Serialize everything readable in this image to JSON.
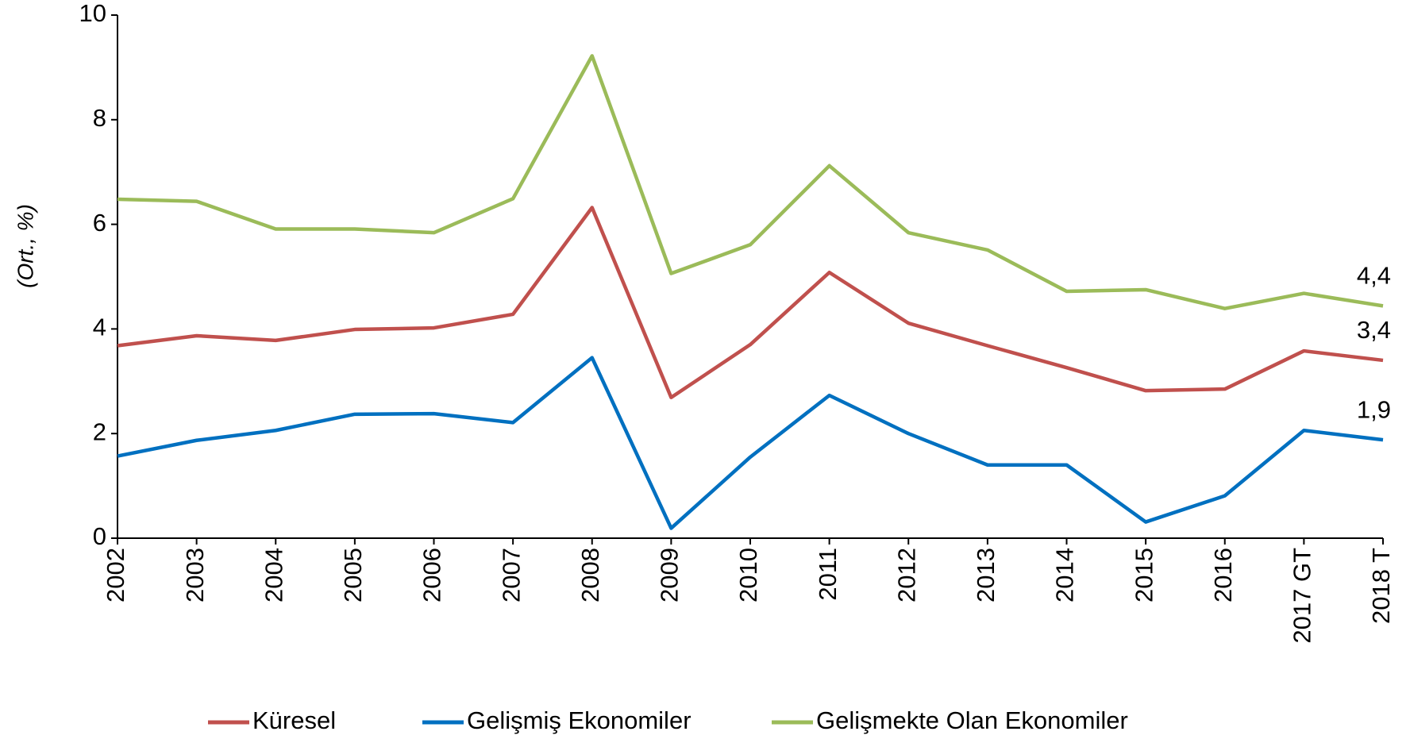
{
  "chart_data": {
    "type": "line",
    "y_label": "(Ort., %)",
    "categories": [
      "2002",
      "2003",
      "2004",
      "2005",
      "2006",
      "2007",
      "2008",
      "2009",
      "2010",
      "2011",
      "2012",
      "2013",
      "2014",
      "2015",
      "2016",
      "2017 GT",
      "2018 T"
    ],
    "series": [
      {
        "name": "Küresel",
        "color": "#c0504d",
        "values": [
          3.68,
          3.87,
          3.78,
          3.99,
          4.02,
          4.28,
          6.32,
          2.69,
          3.7,
          5.08,
          4.11,
          3.68,
          3.26,
          2.82,
          2.85,
          3.58,
          3.4
        ],
        "value_labels": [
          null,
          null,
          null,
          null,
          null,
          null,
          null,
          null,
          null,
          null,
          null,
          null,
          null,
          null,
          null,
          null,
          "3,4"
        ]
      },
      {
        "name": "Gelişmiş Ekonomiler",
        "color": "#0070c0",
        "values": [
          1.57,
          1.87,
          2.06,
          2.37,
          2.38,
          2.21,
          3.45,
          0.19,
          1.55,
          2.73,
          2.0,
          1.4,
          1.4,
          0.31,
          0.81,
          2.06,
          1.88
        ],
        "value_labels": [
          null,
          null,
          null,
          null,
          null,
          null,
          null,
          null,
          null,
          null,
          null,
          null,
          null,
          null,
          null,
          null,
          "1,9"
        ]
      },
      {
        "name": "Gelişmekte Olan Ekonomiler",
        "color": "#9bbb59",
        "values": [
          6.48,
          6.44,
          5.91,
          5.91,
          5.84,
          6.49,
          9.22,
          5.06,
          5.61,
          7.12,
          5.84,
          5.51,
          4.72,
          4.75,
          4.39,
          4.68,
          4.44
        ],
        "value_labels": [
          null,
          null,
          null,
          null,
          null,
          null,
          null,
          null,
          null,
          null,
          null,
          null,
          null,
          null,
          null,
          null,
          "4,4"
        ]
      }
    ],
    "ylim": [
      0,
      10
    ],
    "yticks": [
      0,
      2,
      4,
      6,
      8,
      10
    ],
    "grid": false,
    "legend": "bottom"
  }
}
